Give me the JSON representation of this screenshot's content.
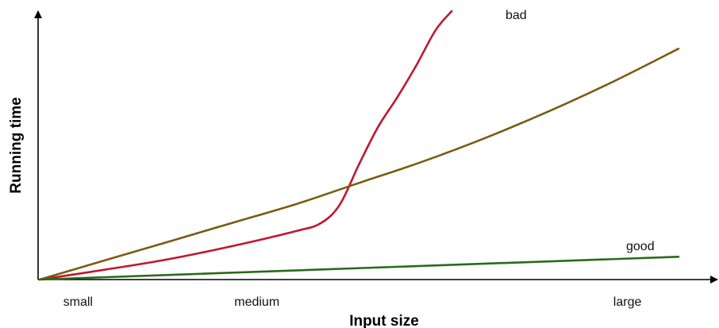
{
  "chart_data": {
    "type": "line",
    "title": "",
    "xlabel": "Input size",
    "ylabel": "Running time",
    "x_tick_labels": [
      {
        "label": "small",
        "x": 0.06
      },
      {
        "label": "medium",
        "x": 0.34
      },
      {
        "label": "large",
        "x": 0.92
      }
    ],
    "grid": false,
    "xlim": [
      0,
      1
    ],
    "ylim": [
      0,
      1
    ],
    "series": [
      {
        "name": "bad",
        "color": "#c0172f",
        "x": [
          0.0,
          0.1,
          0.2,
          0.3,
          0.4,
          0.44,
          0.47,
          0.5,
          0.53,
          0.56,
          0.59,
          0.62,
          0.645
        ],
        "y": [
          0.0,
          0.036,
          0.075,
          0.124,
          0.18,
          0.21,
          0.28,
          0.43,
          0.57,
          0.68,
          0.8,
          0.93,
          1.0
        ]
      },
      {
        "name": "",
        "color": "#7a5c12",
        "x": [
          0.0,
          0.1,
          0.2,
          0.3,
          0.4,
          0.5,
          0.6,
          0.7,
          0.8,
          0.9,
          1.0
        ],
        "y": [
          0.0,
          0.07,
          0.14,
          0.21,
          0.28,
          0.36,
          0.44,
          0.53,
          0.63,
          0.74,
          0.86
        ]
      },
      {
        "name": "good",
        "color": "#2a6a1a",
        "x": [
          0.0,
          1.0
        ],
        "y": [
          0.0,
          0.085
        ]
      }
    ]
  }
}
